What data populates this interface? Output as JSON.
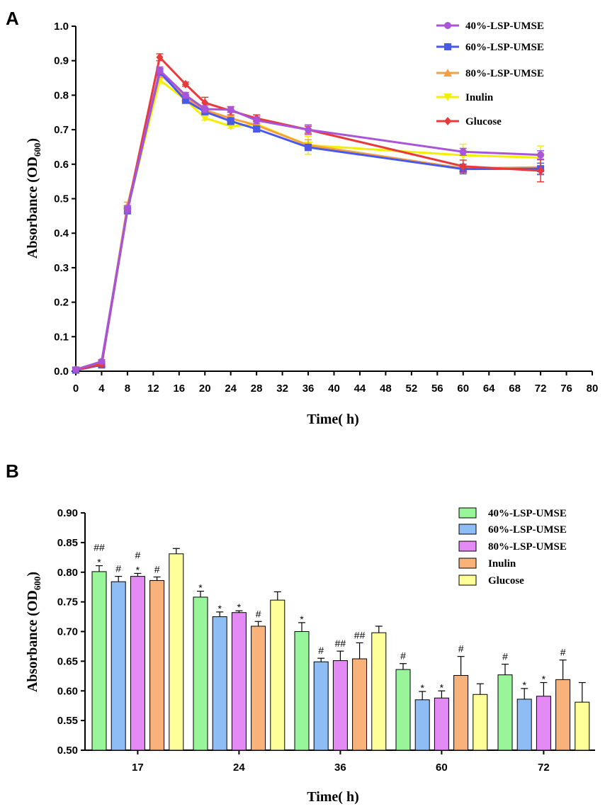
{
  "chart_data": [
    {
      "panel": "A",
      "type": "line",
      "title": "",
      "xlabel": "Time( h)",
      "ylabel": "Absorbance (OD600)",
      "ylabel_main": "Absorbance (OD",
      "ylabel_sub": "600",
      "ylabel_close": ")",
      "xlim": [
        0,
        80
      ],
      "ylim": [
        0.0,
        1.0
      ],
      "xticks": [
        "0",
        "4",
        "8",
        "12",
        "16",
        "20",
        "24",
        "28",
        "32",
        "36",
        "40",
        "44",
        "48",
        "52",
        "56",
        "60",
        "64",
        "68",
        "72",
        "76",
        "80"
      ],
      "yticks": [
        "0.0",
        "0.1",
        "0.2",
        "0.3",
        "0.4",
        "0.5",
        "0.6",
        "0.7",
        "0.8",
        "0.9",
        "1.0"
      ],
      "x": [
        0,
        4,
        8,
        13,
        17,
        20,
        24,
        28,
        36,
        60,
        72
      ],
      "series": [
        {
          "name": "40%-LSP-UMSE",
          "color": "#a855d9",
          "marker": "circle",
          "values": [
            0.005,
            0.028,
            0.47,
            0.872,
            0.8,
            0.76,
            0.758,
            0.727,
            0.7,
            0.636,
            0.627
          ],
          "errors": [
            0.003,
            0.005,
            0.01,
            0.01,
            0.008,
            0.01,
            0.008,
            0.01,
            0.014,
            0.01,
            0.012
          ]
        },
        {
          "name": "60%-LSP-UMSE",
          "color": "#4a5ae8",
          "marker": "square",
          "values": [
            0.003,
            0.018,
            0.466,
            0.868,
            0.785,
            0.752,
            0.725,
            0.702,
            0.649,
            0.586,
            0.587
          ],
          "errors": [
            0.002,
            0.004,
            0.01,
            0.01,
            0.008,
            0.008,
            0.01,
            0.008,
            0.008,
            0.014,
            0.016
          ]
        },
        {
          "name": "80%-LSP-UMSE",
          "color": "#f5a040",
          "marker": "triangle",
          "values": [
            0.004,
            0.022,
            0.48,
            0.862,
            0.793,
            0.757,
            0.733,
            0.713,
            0.655,
            0.588,
            0.591
          ],
          "errors": [
            0.002,
            0.004,
            0.01,
            0.01,
            0.006,
            0.008,
            0.006,
            0.01,
            0.016,
            0.012,
            0.022
          ]
        },
        {
          "name": "Inulin",
          "color": "#f2f000",
          "marker": "triangle-down",
          "values": [
            0.004,
            0.025,
            0.47,
            0.844,
            0.787,
            0.734,
            0.71,
            0.716,
            0.655,
            0.626,
            0.619
          ],
          "errors": [
            0.002,
            0.004,
            0.01,
            0.01,
            0.008,
            0.006,
            0.006,
            0.01,
            0.026,
            0.032,
            0.034
          ]
        },
        {
          "name": "Glucose",
          "color": "#e83a3a",
          "marker": "diamond",
          "values": [
            0.004,
            0.02,
            0.47,
            0.91,
            0.832,
            0.778,
            0.755,
            0.733,
            0.7,
            0.594,
            0.581
          ],
          "errors": [
            0.002,
            0.004,
            0.01,
            0.01,
            0.006,
            0.016,
            0.012,
            0.01,
            0.01,
            0.018,
            0.032
          ]
        }
      ]
    },
    {
      "panel": "B",
      "type": "bar",
      "title": "",
      "xlabel": "Time( h)",
      "ylabel": "Absorbance (OD600)",
      "ylabel_main": "Absorbance (OD",
      "ylabel_sub": "600",
      "ylabel_close": ")",
      "ylim": [
        0.5,
        0.9
      ],
      "yticks": [
        "0.50",
        "0.55",
        "0.60",
        "0.65",
        "0.70",
        "0.75",
        "0.80",
        "0.85",
        "0.90"
      ],
      "categories": [
        "17",
        "24",
        "36",
        "60",
        "72"
      ],
      "series": [
        {
          "name": "40%-LSP-UMSE",
          "color": "#98f59a",
          "values": [
            0.801,
            0.758,
            0.7,
            0.636,
            0.627
          ],
          "errors": [
            0.01,
            0.01,
            0.015,
            0.01,
            0.018
          ],
          "labels": [
            [
              "##",
              "*"
            ],
            [
              "*"
            ],
            [
              "*"
            ],
            [
              "#"
            ],
            [
              "#"
            ]
          ]
        },
        {
          "name": "60%-LSP-UMSE",
          "color": "#8ebdf5",
          "values": [
            0.784,
            0.725,
            0.649,
            0.585,
            0.586
          ],
          "errors": [
            0.009,
            0.008,
            0.006,
            0.014,
            0.018
          ],
          "labels": [
            [
              "#"
            ],
            [
              "*"
            ],
            [
              "#"
            ],
            [
              "*"
            ],
            [
              "*"
            ]
          ]
        },
        {
          "name": "80%-LSP-UMSE",
          "color": "#e38af5",
          "values": [
            0.793,
            0.732,
            0.651,
            0.588,
            0.591
          ],
          "errors": [
            0.005,
            0.003,
            0.016,
            0.012,
            0.023
          ],
          "labels": [
            [
              "#",
              "*"
            ],
            [
              "*"
            ],
            [
              "##"
            ],
            [
              "*"
            ],
            [
              "*"
            ]
          ]
        },
        {
          "name": "Inulin",
          "color": "#f9b27a",
          "values": [
            0.786,
            0.709,
            0.654,
            0.626,
            0.619
          ],
          "errors": [
            0.006,
            0.008,
            0.027,
            0.032,
            0.033
          ],
          "labels": [
            [
              "#"
            ],
            [
              "#"
            ],
            [
              "##"
            ],
            [
              "#"
            ],
            [
              "#"
            ]
          ]
        },
        {
          "name": "Glucose",
          "color": "#ffff99",
          "values": [
            0.831,
            0.753,
            0.698,
            0.594,
            0.581
          ],
          "errors": [
            0.009,
            0.014,
            0.011,
            0.018,
            0.033
          ],
          "labels": [
            [],
            [],
            [],
            [],
            []
          ]
        }
      ]
    }
  ]
}
